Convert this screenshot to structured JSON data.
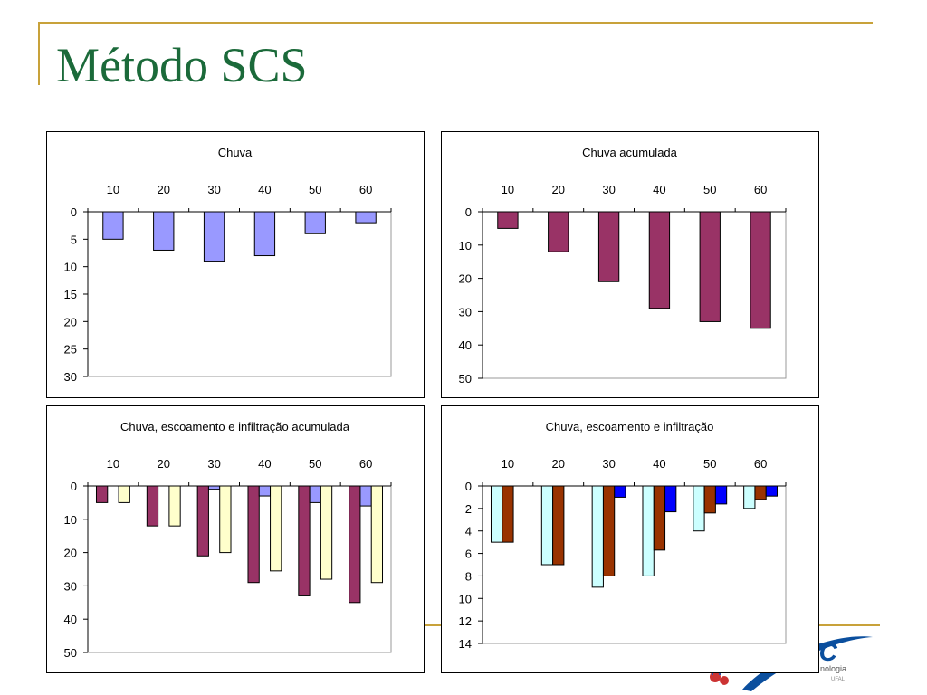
{
  "slide": {
    "title": "Método SCS"
  },
  "colors": {
    "accent_line": "#c8a23a",
    "title_green": "#1b6a3a",
    "chuva_blue": "#9999ff",
    "acumulada_purple": "#993366",
    "pale_yellow": "#ffffcc",
    "light_cyan": "#ccffff",
    "brown": "#993300",
    "blue": "#0000ff"
  },
  "logo": {
    "text": "EC",
    "subtext": "nologia",
    "small": "UFAL"
  },
  "chart_data": [
    {
      "type": "bar",
      "title": "Chuva",
      "categories": [
        "10",
        "20",
        "30",
        "40",
        "50",
        "60"
      ],
      "ylim": [
        0,
        30
      ],
      "yticks": [
        0,
        5,
        10,
        15,
        20,
        25,
        30
      ],
      "y_inverted": true,
      "series": [
        {
          "values": [
            5,
            7,
            9,
            8,
            4,
            2
          ],
          "color": "#9999ff"
        }
      ]
    },
    {
      "type": "bar",
      "title": "Chuva acumulada",
      "categories": [
        "10",
        "20",
        "30",
        "40",
        "50",
        "60"
      ],
      "ylim": [
        0,
        50
      ],
      "yticks": [
        0,
        10,
        20,
        30,
        40,
        50
      ],
      "y_inverted": true,
      "series": [
        {
          "values": [
            5,
            12,
            21,
            29,
            33,
            35
          ],
          "color": "#993366"
        }
      ]
    },
    {
      "type": "bar",
      "title": "Chuva, escoamento e infiltração acumulada",
      "categories": [
        "10",
        "20",
        "30",
        "40",
        "50",
        "60"
      ],
      "ylim": [
        0,
        50
      ],
      "yticks": [
        0,
        10,
        20,
        30,
        40,
        50
      ],
      "y_inverted": true,
      "series": [
        {
          "values": [
            5,
            12,
            21,
            29,
            33,
            35
          ],
          "color": "#993366"
        },
        {
          "values": [
            0,
            0,
            1,
            3,
            5,
            6
          ],
          "color": "#9999ff"
        },
        {
          "values": [
            5,
            12,
            20,
            25.5,
            28,
            29
          ],
          "color": "#ffffcc"
        }
      ]
    },
    {
      "type": "bar",
      "title": "Chuva, escoamento e infiltração",
      "categories": [
        "10",
        "20",
        "30",
        "40",
        "50",
        "60"
      ],
      "ylim": [
        0,
        14
      ],
      "yticks": [
        0,
        2,
        4,
        6,
        8,
        10,
        12,
        14
      ],
      "y_inverted": true,
      "series": [
        {
          "values": [
            5,
            7,
            9,
            8,
            4,
            2
          ],
          "color": "#ccffff"
        },
        {
          "values": [
            5,
            7,
            8,
            5.7,
            2.4,
            1.2
          ],
          "color": "#993300"
        },
        {
          "values": [
            0,
            0,
            1,
            2.3,
            1.6,
            0.9
          ],
          "color": "#0000ff"
        }
      ]
    }
  ]
}
